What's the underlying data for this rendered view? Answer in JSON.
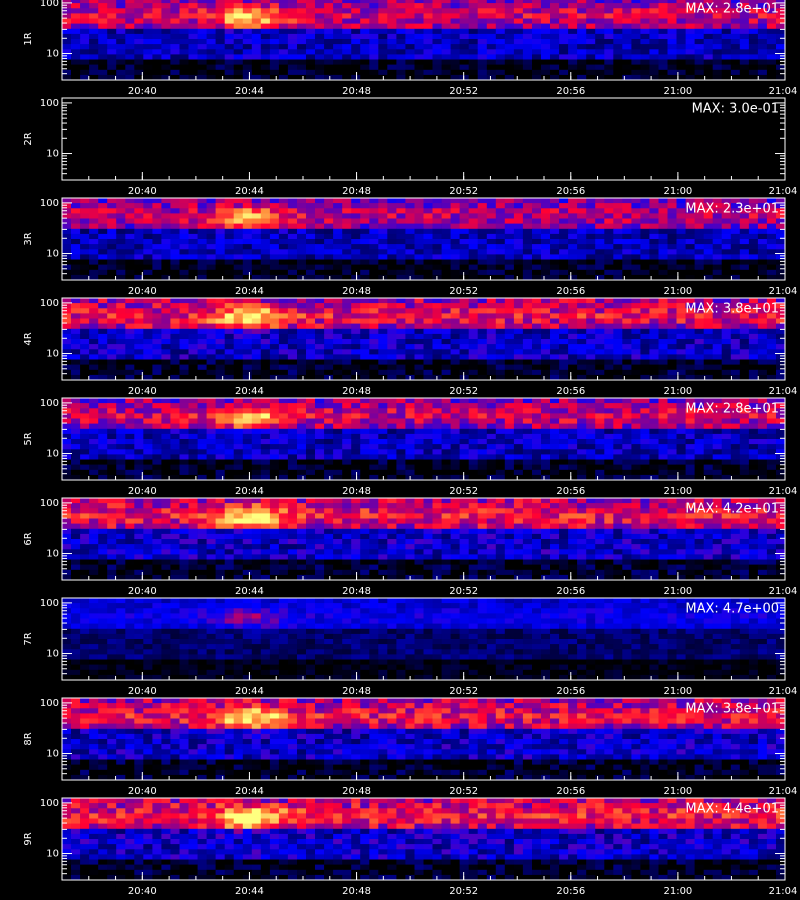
{
  "chart_data": {
    "type": "spectrogram",
    "xlim": [
      "20:37",
      "21:04"
    ],
    "xticks": [
      "20:40",
      "20:44",
      "20:48",
      "20:52",
      "20:56",
      "21:00",
      "21:04"
    ],
    "ylim": [
      3,
      125
    ],
    "yticks": [
      10,
      100
    ],
    "log_y": true,
    "panels": [
      {
        "ylabel": "1R",
        "max": 28,
        "max_label": "MAX: 2.8e+01"
      },
      {
        "ylabel": "2R",
        "max": 0.3,
        "max_label": "MAX: 3.0e-01"
      },
      {
        "ylabel": "3R",
        "max": 23,
        "max_label": "MAX: 2.3e+01"
      },
      {
        "ylabel": "4R",
        "max": 38,
        "max_label": "MAX: 3.8e+01"
      },
      {
        "ylabel": "5R",
        "max": 28,
        "max_label": "MAX: 2.8e+01"
      },
      {
        "ylabel": "6R",
        "max": 42,
        "max_label": "MAX: 4.2e+01"
      },
      {
        "ylabel": "7R",
        "max": 4.7,
        "max_label": "MAX: 4.7e+00"
      },
      {
        "ylabel": "8R",
        "max": 38,
        "max_label": "MAX: 3.8e+01"
      },
      {
        "ylabel": "9R",
        "max": 44,
        "max_label": "MAX: 4.4e+01"
      }
    ]
  }
}
